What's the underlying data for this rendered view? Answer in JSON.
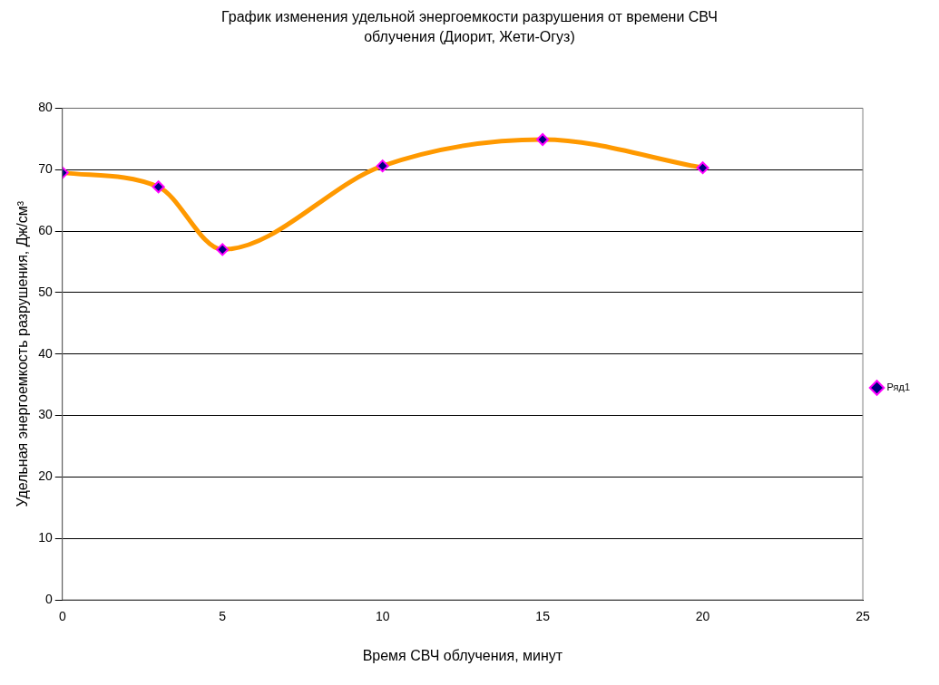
{
  "chart_data": {
    "type": "line",
    "title": "График изменения удельной энергоемкости разрушения от времени СВЧ облучения (Диорит, Жети-Огуз)",
    "xlabel": "Время СВЧ облучения, минут",
    "ylabel": "Удельная энергоемкость разрушения, Дж/см³",
    "x": [
      0,
      3,
      5,
      10,
      15,
      20
    ],
    "series": [
      {
        "name": "Ряд1",
        "color": "#ff9900",
        "values": [
          69.5,
          67.2,
          57,
          70.6,
          74.9,
          70.3
        ]
      }
    ],
    "xlim": [
      0,
      25
    ],
    "xticks": [
      0,
      5,
      10,
      15,
      20,
      25
    ],
    "ylim": [
      0,
      80
    ],
    "yticks": [
      0,
      10,
      20,
      30,
      40,
      50,
      60,
      70,
      80
    ],
    "grid": "y",
    "legend": "right",
    "marker": "diamond",
    "line_style": "solid"
  }
}
